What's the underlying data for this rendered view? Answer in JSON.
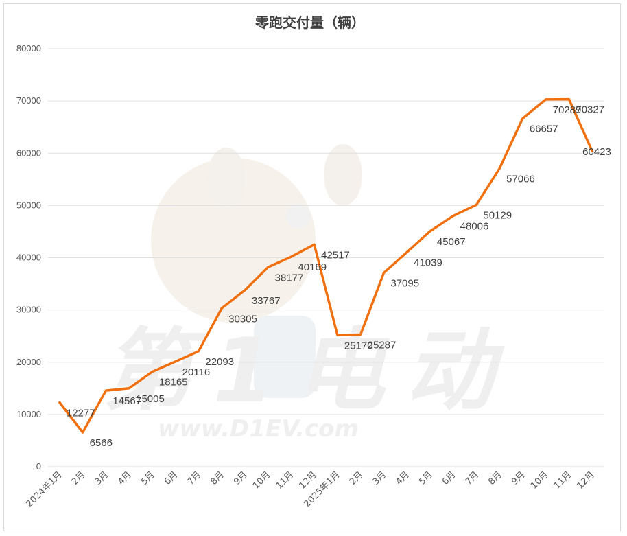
{
  "chart_data": {
    "type": "line",
    "title": "零跑交付量（辆）",
    "categories": [
      "2024年1月",
      "2月",
      "3月",
      "4月",
      "5月",
      "6月",
      "7月",
      "8月",
      "9月",
      "10月",
      "11月",
      "12月",
      "2025年1月",
      "2月",
      "3月",
      "4月",
      "5月",
      "6月",
      "7月",
      "8月",
      "9月",
      "10月",
      "11月",
      "12月"
    ],
    "series": [
      {
        "values": [
          12277,
          6566,
          14567,
          15005,
          18165,
          20116,
          22093,
          30305,
          33767,
          38177,
          40169,
          42517,
          25170,
          25287,
          37095,
          41039,
          45067,
          48006,
          50129,
          57066,
          66657,
          70289,
          70327,
          60423
        ],
        "color": "#f07010"
      }
    ],
    "data_labels": [
      "12277",
      "6566",
      "14567",
      "15005",
      "18165",
      "20116",
      "22093",
      "30305",
      "33767",
      "38177",
      "40169",
      "42517",
      "25170",
      "25287",
      "37095",
      "41039",
      "45067",
      "48006",
      "50129",
      "57066",
      "66657",
      "70289",
      "70327",
      "60423"
    ],
    "ylim": [
      0,
      80000
    ],
    "yticks": [
      "0",
      "10000",
      "20000",
      "30000",
      "40000",
      "50000",
      "60000",
      "70000",
      "80000"
    ],
    "grid": true,
    "legend": "none"
  },
  "watermark": {
    "brand": "第1电动",
    "url": "www.D1EV.com"
  },
  "colors": {
    "line": "#f07010",
    "grid": "#e0e0e0",
    "text": "#404040"
  }
}
